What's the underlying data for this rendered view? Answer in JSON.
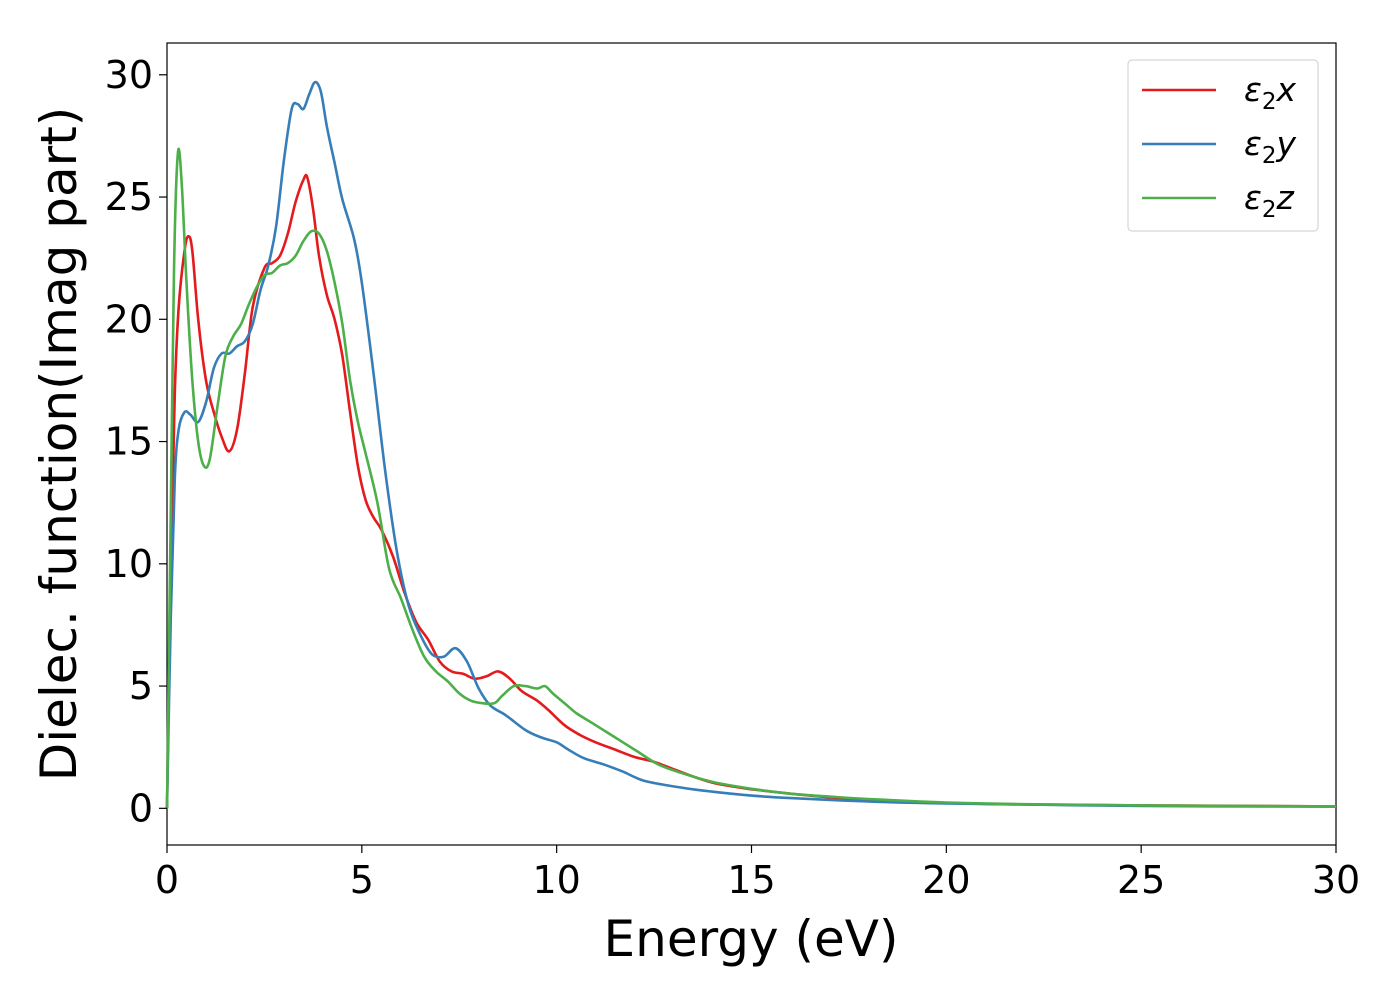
{
  "chart_data": {
    "type": "line",
    "title": "",
    "xlabel": "Energy (eV)",
    "ylabel": "Dielec. function(Imag part)",
    "xlim": [
      0,
      30
    ],
    "ylim": [
      -1.5,
      31.3
    ],
    "xticks": [
      "0",
      "5",
      "10",
      "15",
      "20",
      "25",
      "30"
    ],
    "yticks": [
      "0",
      "5",
      "10",
      "15",
      "20",
      "25",
      "30"
    ],
    "grid": false,
    "legend_position": "upper right",
    "series": [
      {
        "name": "ε2x",
        "legend_base": "ε",
        "legend_sub": "2",
        "legend_var": "x",
        "color": "#e41a1c",
        "points": [
          [
            0,
            0
          ],
          [
            0.1,
            10
          ],
          [
            0.2,
            17
          ],
          [
            0.3,
            20.5
          ],
          [
            0.45,
            22.8
          ],
          [
            0.55,
            23.4
          ],
          [
            0.65,
            22.8
          ],
          [
            0.8,
            20
          ],
          [
            1.0,
            17.5
          ],
          [
            1.2,
            16.2
          ],
          [
            1.4,
            15.2
          ],
          [
            1.6,
            14.6
          ],
          [
            1.8,
            15.5
          ],
          [
            2.0,
            17.8
          ],
          [
            2.2,
            20.5
          ],
          [
            2.5,
            22.1
          ],
          [
            2.7,
            22.3
          ],
          [
            2.9,
            22.6
          ],
          [
            3.1,
            23.5
          ],
          [
            3.3,
            24.8
          ],
          [
            3.5,
            25.7
          ],
          [
            3.6,
            25.8
          ],
          [
            3.75,
            24.5
          ],
          [
            3.9,
            22.6
          ],
          [
            4.1,
            21
          ],
          [
            4.3,
            20
          ],
          [
            4.5,
            18.5
          ],
          [
            4.7,
            16.2
          ],
          [
            4.9,
            14
          ],
          [
            5.1,
            12.6
          ],
          [
            5.3,
            11.9
          ],
          [
            5.5,
            11.4
          ],
          [
            5.8,
            10.3
          ],
          [
            6.1,
            8.8
          ],
          [
            6.4,
            7.6
          ],
          [
            6.7,
            6.9
          ],
          [
            7.0,
            6.0
          ],
          [
            7.3,
            5.6
          ],
          [
            7.6,
            5.5
          ],
          [
            7.9,
            5.3
          ],
          [
            8.2,
            5.4
          ],
          [
            8.5,
            5.6
          ],
          [
            8.8,
            5.3
          ],
          [
            9.1,
            4.8
          ],
          [
            9.5,
            4.4
          ],
          [
            9.8,
            4.0
          ],
          [
            10.2,
            3.4
          ],
          [
            10.6,
            3.0
          ],
          [
            11.0,
            2.7
          ],
          [
            11.5,
            2.4
          ],
          [
            12.0,
            2.1
          ],
          [
            12.5,
            1.9
          ],
          [
            13.0,
            1.6
          ],
          [
            13.5,
            1.3
          ],
          [
            14.0,
            1.05
          ],
          [
            14.5,
            0.9
          ],
          [
            15.0,
            0.78
          ],
          [
            16.0,
            0.6
          ],
          [
            17.0,
            0.45
          ],
          [
            18.0,
            0.35
          ],
          [
            20.0,
            0.22
          ],
          [
            22.0,
            0.16
          ],
          [
            25.0,
            0.12
          ],
          [
            30.0,
            0.08
          ]
        ]
      },
      {
        "name": "ε2y",
        "legend_base": "ε",
        "legend_sub": "2",
        "legend_var": "y",
        "color": "#377eb8",
        "points": [
          [
            0,
            0
          ],
          [
            0.1,
            8
          ],
          [
            0.2,
            13.5
          ],
          [
            0.3,
            15.5
          ],
          [
            0.45,
            16.2
          ],
          [
            0.6,
            16.1
          ],
          [
            0.8,
            15.8
          ],
          [
            1.0,
            16.6
          ],
          [
            1.2,
            18
          ],
          [
            1.4,
            18.6
          ],
          [
            1.6,
            18.6
          ],
          [
            1.8,
            18.9
          ],
          [
            2.0,
            19.1
          ],
          [
            2.2,
            19.8
          ],
          [
            2.4,
            21.2
          ],
          [
            2.6,
            22.2
          ],
          [
            2.8,
            23.8
          ],
          [
            3.0,
            26.5
          ],
          [
            3.2,
            28.6
          ],
          [
            3.35,
            28.8
          ],
          [
            3.5,
            28.6
          ],
          [
            3.65,
            29.2
          ],
          [
            3.8,
            29.7
          ],
          [
            3.95,
            29.3
          ],
          [
            4.1,
            27.9
          ],
          [
            4.3,
            26.4
          ],
          [
            4.5,
            24.9
          ],
          [
            4.8,
            23.3
          ],
          [
            5.0,
            21.5
          ],
          [
            5.3,
            17.8
          ],
          [
            5.6,
            13.8
          ],
          [
            5.9,
            10.5
          ],
          [
            6.2,
            8.3
          ],
          [
            6.5,
            7.1
          ],
          [
            6.8,
            6.3
          ],
          [
            7.1,
            6.2
          ],
          [
            7.4,
            6.55
          ],
          [
            7.7,
            6.0
          ],
          [
            8.0,
            4.9
          ],
          [
            8.3,
            4.2
          ],
          [
            8.7,
            3.8
          ],
          [
            9.2,
            3.2
          ],
          [
            9.6,
            2.9
          ],
          [
            10.0,
            2.7
          ],
          [
            10.3,
            2.4
          ],
          [
            10.7,
            2.05
          ],
          [
            11.2,
            1.8
          ],
          [
            11.7,
            1.5
          ],
          [
            12.2,
            1.15
          ],
          [
            12.8,
            0.95
          ],
          [
            13.5,
            0.78
          ],
          [
            14.0,
            0.68
          ],
          [
            15.0,
            0.52
          ],
          [
            16.0,
            0.42
          ],
          [
            18.0,
            0.28
          ],
          [
            20.0,
            0.2
          ],
          [
            25.0,
            0.1
          ],
          [
            30.0,
            0.07
          ]
        ]
      },
      {
        "name": "ε2z",
        "legend_base": "ε",
        "legend_sub": "2",
        "legend_var": "z",
        "color": "#4daf4a",
        "points": [
          [
            0,
            0
          ],
          [
            0.08,
            10
          ],
          [
            0.18,
            22
          ],
          [
            0.28,
            26.8
          ],
          [
            0.38,
            25.5
          ],
          [
            0.5,
            21.5
          ],
          [
            0.65,
            17.5
          ],
          [
            0.8,
            15
          ],
          [
            0.95,
            14
          ],
          [
            1.1,
            14.3
          ],
          [
            1.3,
            16.5
          ],
          [
            1.5,
            18.5
          ],
          [
            1.7,
            19.3
          ],
          [
            1.9,
            19.8
          ],
          [
            2.1,
            20.6
          ],
          [
            2.3,
            21.3
          ],
          [
            2.5,
            21.8
          ],
          [
            2.7,
            21.9
          ],
          [
            2.9,
            22.2
          ],
          [
            3.1,
            22.3
          ],
          [
            3.3,
            22.6
          ],
          [
            3.5,
            23.2
          ],
          [
            3.7,
            23.6
          ],
          [
            3.9,
            23.5
          ],
          [
            4.1,
            22.8
          ],
          [
            4.3,
            21.5
          ],
          [
            4.5,
            19.8
          ],
          [
            4.7,
            17.5
          ],
          [
            4.9,
            15.8
          ],
          [
            5.1,
            14.5
          ],
          [
            5.4,
            12.5
          ],
          [
            5.7,
            9.8
          ],
          [
            6.0,
            8.6
          ],
          [
            6.3,
            7.3
          ],
          [
            6.6,
            6.2
          ],
          [
            6.9,
            5.6
          ],
          [
            7.2,
            5.2
          ],
          [
            7.5,
            4.7
          ],
          [
            7.8,
            4.4
          ],
          [
            8.1,
            4.3
          ],
          [
            8.4,
            4.3
          ],
          [
            8.6,
            4.6
          ],
          [
            8.9,
            5.0
          ],
          [
            9.2,
            5.0
          ],
          [
            9.5,
            4.9
          ],
          [
            9.7,
            5.0
          ],
          [
            9.9,
            4.7
          ],
          [
            10.2,
            4.3
          ],
          [
            10.5,
            3.9
          ],
          [
            10.9,
            3.5
          ],
          [
            11.3,
            3.1
          ],
          [
            11.7,
            2.7
          ],
          [
            12.1,
            2.3
          ],
          [
            12.6,
            1.8
          ],
          [
            13.2,
            1.45
          ],
          [
            14.0,
            1.08
          ],
          [
            15.0,
            0.8
          ],
          [
            16.0,
            0.6
          ],
          [
            17.0,
            0.48
          ],
          [
            18.0,
            0.38
          ],
          [
            20.0,
            0.24
          ],
          [
            22.0,
            0.17
          ],
          [
            25.0,
            0.12
          ],
          [
            30.0,
            0.08
          ]
        ]
      }
    ]
  }
}
